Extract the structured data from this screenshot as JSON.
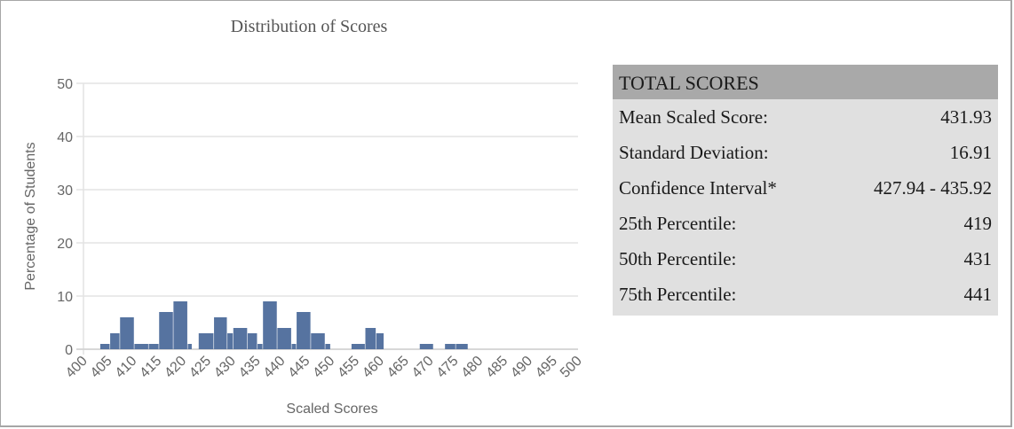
{
  "chart_data": {
    "type": "bar",
    "title": "Distribution of Scores",
    "xlabel": "Scaled Scores",
    "ylabel": "Percentage of Students",
    "xlim": [
      400,
      500
    ],
    "ylim": [
      0,
      50
    ],
    "x_ticks": [
      "400",
      "405",
      "410",
      "415",
      "420",
      "425",
      "430",
      "435",
      "440",
      "445",
      "450",
      "455",
      "460",
      "465",
      "470",
      "475",
      "480",
      "485",
      "490",
      "495",
      "500"
    ],
    "y_ticks": [
      "0",
      "10",
      "20",
      "30",
      "40",
      "50"
    ],
    "grid": true,
    "bar_color": "#5673a0",
    "bars": [
      {
        "x0": 403.4,
        "x1": 405.4,
        "value": 1
      },
      {
        "x0": 405.4,
        "x1": 407.4,
        "value": 3
      },
      {
        "x0": 407.4,
        "x1": 410.3,
        "value": 6
      },
      {
        "x0": 410.3,
        "x1": 413.2,
        "value": 1
      },
      {
        "x0": 413.2,
        "x1": 415.3,
        "value": 1
      },
      {
        "x0": 415.3,
        "x1": 418.2,
        "value": 7
      },
      {
        "x0": 418.2,
        "x1": 421.1,
        "value": 9
      },
      {
        "x0": 421.1,
        "x1": 422.0,
        "value": 1
      },
      {
        "x0": 423.3,
        "x1": 426.4,
        "value": 3
      },
      {
        "x0": 426.4,
        "x1": 429.1,
        "value": 6
      },
      {
        "x0": 429.1,
        "x1": 430.3,
        "value": 3
      },
      {
        "x0": 430.3,
        "x1": 433.2,
        "value": 4
      },
      {
        "x0": 433.2,
        "x1": 435.2,
        "value": 3
      },
      {
        "x0": 435.2,
        "x1": 436.3,
        "value": 1
      },
      {
        "x0": 436.3,
        "x1": 439.2,
        "value": 9
      },
      {
        "x0": 439.2,
        "x1": 442.1,
        "value": 4
      },
      {
        "x0": 442.1,
        "x1": 443.1,
        "value": 1
      },
      {
        "x0": 443.1,
        "x1": 446.0,
        "value": 7
      },
      {
        "x0": 446.0,
        "x1": 448.9,
        "value": 3
      },
      {
        "x0": 448.9,
        "x1": 450.0,
        "value": 1
      },
      {
        "x0": 454.2,
        "x1": 457.0,
        "value": 1
      },
      {
        "x0": 457.0,
        "x1": 459.2,
        "value": 4
      },
      {
        "x0": 459.2,
        "x1": 460.8,
        "value": 3
      },
      {
        "x0": 468.0,
        "x1": 470.8,
        "value": 1
      },
      {
        "x0": 473.1,
        "x1": 475.3,
        "value": 1
      },
      {
        "x0": 475.3,
        "x1": 477.8,
        "value": 1
      }
    ]
  },
  "stats": {
    "header": "TOTAL SCORES",
    "rows": [
      {
        "label": "Mean Scaled Score:",
        "value": "431.93"
      },
      {
        "label": "Standard Deviation:",
        "value": "16.91"
      },
      {
        "label": "Confidence Interval*",
        "value": "427.94 - 435.92"
      },
      {
        "label": "25th Percentile:",
        "value": "419"
      },
      {
        "label": "50th Percentile:",
        "value": "431"
      },
      {
        "label": "75th Percentile:",
        "value": "441"
      }
    ]
  }
}
